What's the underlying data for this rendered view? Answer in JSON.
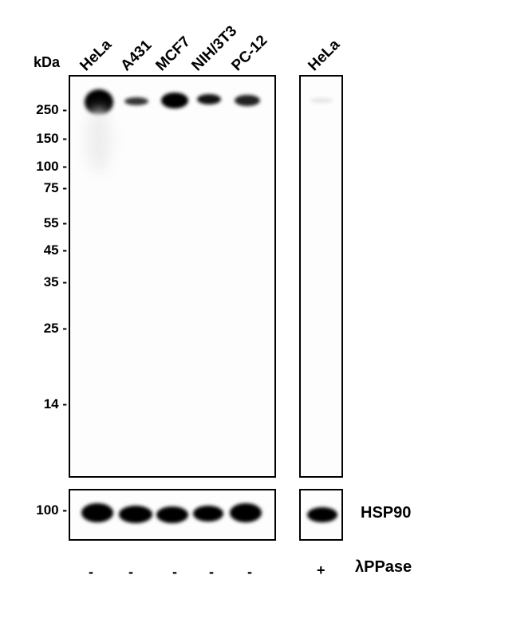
{
  "kda_label": "kDa",
  "lanes": [
    "HeLa",
    "A431",
    "MCF7",
    "NIH/3T3",
    "PC-12"
  ],
  "treated_lane": "HeLa",
  "markers": [
    "250",
    "150",
    "100",
    "75",
    "55",
    "45",
    "35",
    "25",
    "14"
  ],
  "loading_marker": "100",
  "loading_control": "HSP90",
  "treatment_label": "λPPase",
  "treatment_signs": [
    "-",
    "-",
    "-",
    "-",
    "-",
    "+"
  ]
}
